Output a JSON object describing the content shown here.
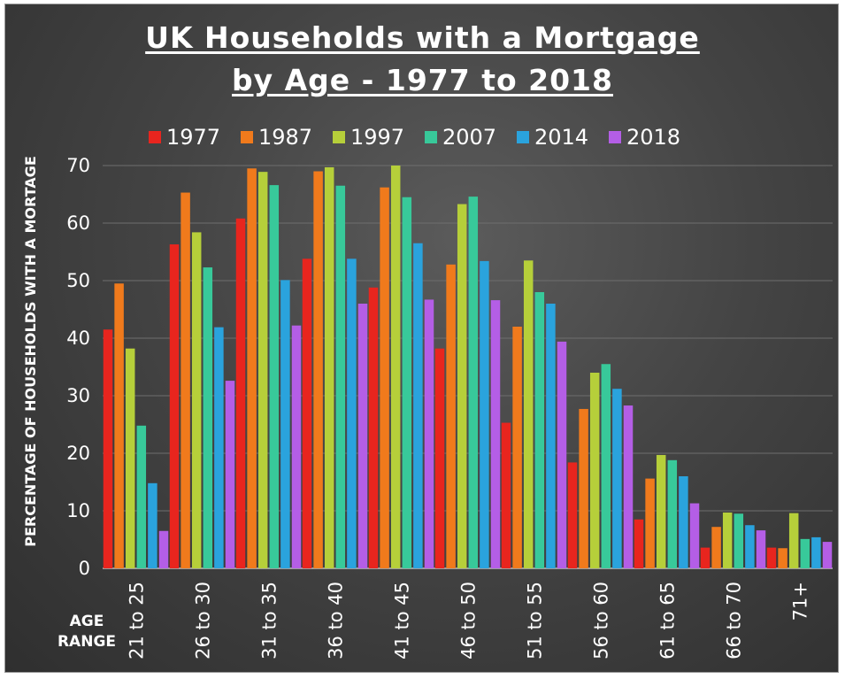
{
  "chart_data": {
    "type": "bar",
    "title_lines": [
      "UK Households with a Mortgage",
      "by Age - 1977 to 2018"
    ],
    "ylabel": "PERCENTAGE OF HOUSEHOLDS WITH A MORTAGE",
    "xlabel_lines": [
      "AGE",
      "RANGE"
    ],
    "ylim": [
      0,
      70
    ],
    "yticks": [
      0,
      10,
      20,
      30,
      40,
      50,
      60,
      70
    ],
    "grid": true,
    "legend_position": "top",
    "categories": [
      "21 to 25",
      "26 to 30",
      "31 to 35",
      "36 to 40",
      "41 to 45",
      "46 to 50",
      "51 to 55",
      "56 to 60",
      "61 to 65",
      "66 to 70",
      "71+"
    ],
    "series": [
      {
        "name": "1977",
        "color": "#e8251e",
        "values": [
          41.5,
          56.3,
          60.8,
          53.8,
          48.8,
          38.2,
          25.3,
          18.4,
          8.5,
          3.6,
          3.6
        ]
      },
      {
        "name": "1987",
        "color": "#f07a1c",
        "values": [
          49.5,
          65.3,
          69.5,
          69.0,
          66.2,
          52.8,
          42.0,
          27.7,
          15.6,
          7.2,
          3.5
        ]
      },
      {
        "name": "1997",
        "color": "#b6cf3a",
        "values": [
          38.2,
          58.4,
          68.9,
          69.7,
          70.0,
          63.3,
          53.5,
          34.0,
          19.7,
          9.7,
          9.6
        ]
      },
      {
        "name": "2007",
        "color": "#38c99a",
        "values": [
          24.8,
          52.3,
          66.6,
          66.5,
          64.5,
          64.6,
          48.0,
          35.5,
          18.8,
          9.5,
          5.1
        ]
      },
      {
        "name": "2014",
        "color": "#2aa3dd",
        "values": [
          14.8,
          41.9,
          50.1,
          53.8,
          56.5,
          53.4,
          46.0,
          31.2,
          16.0,
          7.5,
          5.4
        ]
      },
      {
        "name": "2018",
        "color": "#b45ee6",
        "values": [
          6.5,
          32.6,
          42.2,
          46.0,
          46.7,
          46.6,
          39.4,
          28.3,
          11.3,
          6.6,
          4.6
        ]
      }
    ]
  }
}
